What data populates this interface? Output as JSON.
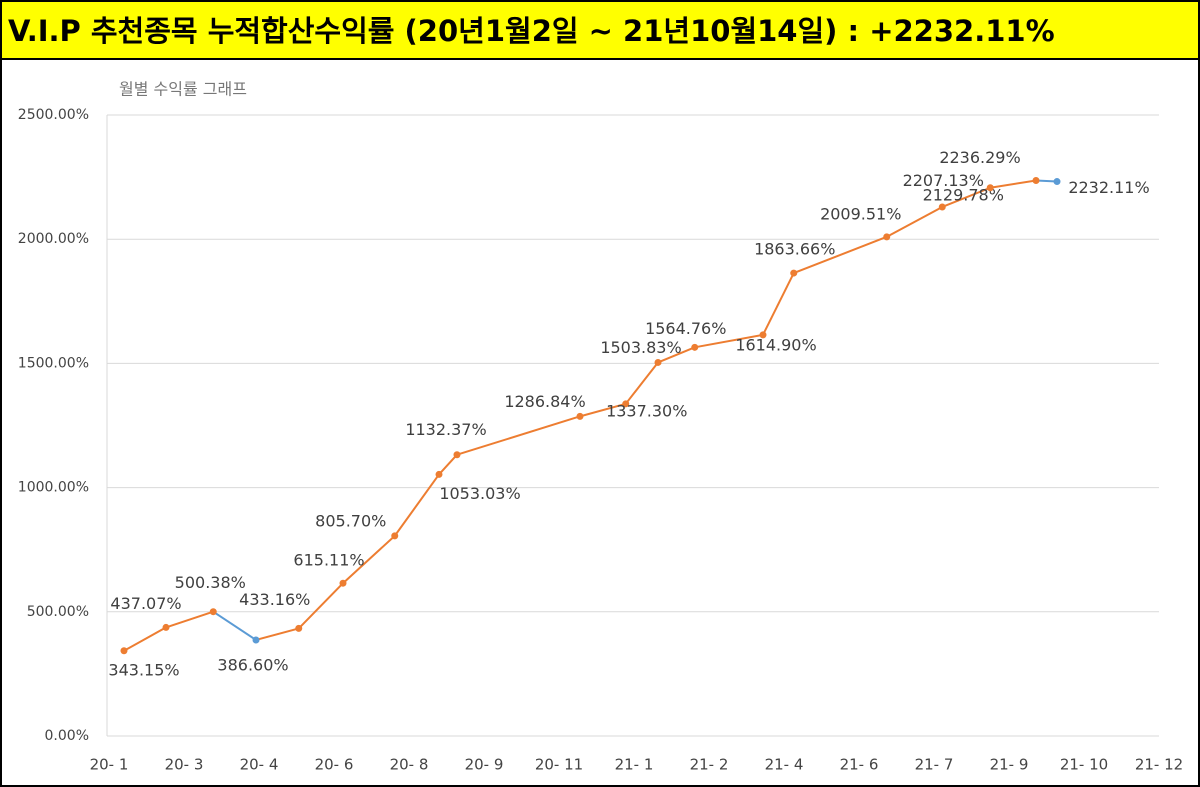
{
  "header": {
    "title": "V.I.P 추천종목 누적합산수익률 (20년1월2일 ~ 21년10월14일) : +2232.11%"
  },
  "chart_data": {
    "type": "line",
    "title": "월별 수익률 그래프",
    "x": [
      0.2,
      0.76,
      1.39,
      1.96,
      2.53,
      3.12,
      3.81,
      4.4,
      4.64,
      6.28,
      6.89,
      7.32,
      7.81,
      8.72,
      9.13,
      10.37,
      11.11,
      11.75,
      12.36,
      12.64
    ],
    "series": [
      {
        "color": "#ed7d31",
        "point_colors": [
          "#ed7d31",
          "#ed7d31",
          "#ed7d31",
          "#5b9bd5",
          "#ed7d31",
          "#ed7d31",
          "#ed7d31",
          "#ed7d31",
          "#ed7d31",
          "#ed7d31",
          "#ed7d31",
          "#ed7d31",
          "#ed7d31",
          "#ed7d31",
          "#ed7d31",
          "#ed7d31",
          "#ed7d31",
          "#ed7d31",
          "#ed7d31",
          "#5b9bd5"
        ],
        "values": [
          343.15,
          437.07,
          500.38,
          386.6,
          433.16,
          615.11,
          805.7,
          1053.03,
          1132.37,
          1286.84,
          1337.3,
          1503.83,
          1564.76,
          1614.9,
          1863.66,
          2009.51,
          2129.78,
          2207.13,
          2236.29,
          2232.11
        ],
        "value_labels": [
          "343.15%",
          "437.07%",
          "500.38%",
          "386.60%",
          "433.16%",
          "615.11%",
          "805.70%",
          "1053.03%",
          "1132.37%",
          "1286.84%",
          "1337.30%",
          "1503.83%",
          "1564.76%",
          "1614.90%",
          "1863.66%",
          "2009.51%",
          "2129.78%",
          "2207.13%",
          "2236.29%",
          "2232.11%"
        ]
      }
    ],
    "xlim": [
      0,
      14
    ],
    "xticks": [
      {
        "value": 0,
        "label": "20- 1"
      },
      {
        "value": 1,
        "label": "20- 3"
      },
      {
        "value": 2,
        "label": "20- 4"
      },
      {
        "value": 3,
        "label": "20- 6"
      },
      {
        "value": 4,
        "label": "20- 8"
      },
      {
        "value": 5,
        "label": "20- 9"
      },
      {
        "value": 6,
        "label": "20- 11"
      },
      {
        "value": 7,
        "label": "21- 1"
      },
      {
        "value": 8,
        "label": "21- 2"
      },
      {
        "value": 9,
        "label": "21- 4"
      },
      {
        "value": 10,
        "label": "21- 6"
      },
      {
        "value": 11,
        "label": "21- 7"
      },
      {
        "value": 12,
        "label": "21- 9"
      },
      {
        "value": 13,
        "label": "21- 10"
      },
      {
        "value": 14,
        "label": "21- 12"
      }
    ],
    "ylim": [
      0,
      2500
    ],
    "yticks": [
      {
        "value": 0,
        "label": "0.00%"
      },
      {
        "value": 500,
        "label": "500.00%"
      },
      {
        "value": 1000,
        "label": "1000.00%"
      },
      {
        "value": 1500,
        "label": "1500.00%"
      },
      {
        "value": 2000,
        "label": "2000.00%"
      },
      {
        "value": 2500,
        "label": "2500.00%"
      }
    ],
    "grid": true
  }
}
